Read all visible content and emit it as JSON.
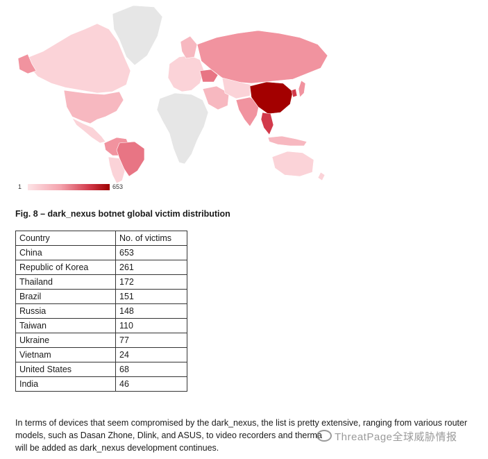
{
  "map": {
    "legend_min": "1",
    "legend_max": "653",
    "colors": {
      "no_data": "#e6e6e6",
      "low": "#fbd3d8",
      "light": "#f7b8c0",
      "mid": "#f1939f",
      "mid_dark": "#e87584",
      "high": "#d23a4b",
      "max": "#a30000"
    }
  },
  "caption": "Fig. 8 – dark_nexus botnet global victim distribution",
  "table": {
    "headers": [
      "Country",
      "No. of victims"
    ],
    "rows": [
      {
        "country": "China",
        "victims": "653"
      },
      {
        "country": "Republic of Korea",
        "victims": "261"
      },
      {
        "country": "Thailand",
        "victims": "172"
      },
      {
        "country": "Brazil",
        "victims": "151"
      },
      {
        "country": "Russia",
        "victims": "148"
      },
      {
        "country": "Taiwan",
        "victims": "110"
      },
      {
        "country": "Ukraine",
        "victims": "77"
      },
      {
        "country": "Vietnam",
        "victims": "24"
      },
      {
        "country": "United States",
        "victims": "68"
      },
      {
        "country": "India",
        "victims": "46"
      }
    ]
  },
  "paragraph": {
    "line1": "In terms of devices that seem compromised by the dark_nexus, the list is pretty extensive, ranging from various router",
    "line2": "models, such as Dasan Zhone, Dlink, and ASUS, to video recorders and therma",
    "line3": "will be added as dark_nexus development continues."
  },
  "watermark": "ThreatPage全球威胁情报"
}
